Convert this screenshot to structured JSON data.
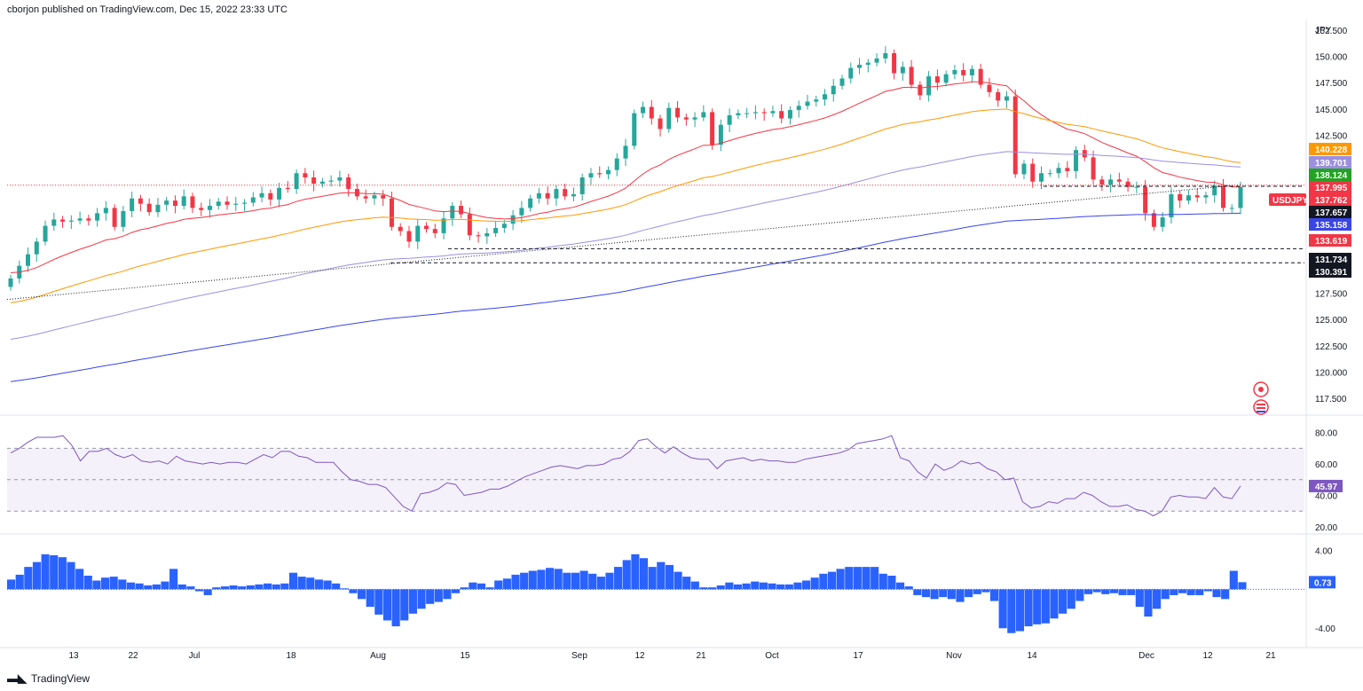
{
  "header": {
    "published_text": "cborjon published on TradingView.com, Dec 15, 2022 23:33 UTC"
  },
  "footer": {
    "brand": "TradingView"
  },
  "colors": {
    "up": "#26a69a",
    "down": "#f23645",
    "ema20": "#f23645",
    "ema50": "#ff9800",
    "ema100": "#9c8fe0",
    "ema200": "#3a45e8",
    "rsi": "#7e57c2",
    "hist": "#2962ff",
    "price_line": "#f23645"
  },
  "chart_data": [
    {
      "type": "candlestick",
      "symbol": "USDJPY",
      "currency_label": "JPY",
      "ylim": [
        116,
        153.5
      ],
      "y_ticks": [
        "152.500",
        "150.000",
        "147.500",
        "145.000",
        "142.500",
        "140.000",
        "137.500",
        "135.000",
        "132.500",
        "130.000",
        "127.500",
        "125.000",
        "122.500",
        "120.000",
        "117.500"
      ],
      "x_tick_labels": [
        "13",
        "22",
        "Jul",
        "18",
        "Aug",
        "15",
        "Sep",
        "12",
        "21",
        "Oct",
        "17",
        "Nov",
        "14",
        "Dec",
        "12",
        "21"
      ],
      "ohlc_close": [
        128.9,
        130.1,
        131.2,
        132.4,
        133.9,
        134.5,
        134.3,
        134.4,
        134.6,
        134.4,
        135.1,
        135.6,
        133.8,
        135.3,
        136.5,
        136.0,
        135.2,
        135.9,
        136.3,
        135.8,
        136.7,
        135.6,
        135.4,
        135.8,
        136.2,
        135.9,
        136.0,
        136.1,
        136.6,
        137.0,
        136.4,
        137.5,
        137.4,
        138.9,
        138.5,
        137.9,
        138.1,
        138.2,
        138.5,
        137.4,
        136.7,
        136.5,
        136.8,
        136.5,
        133.8,
        133.4,
        132.4,
        133.9,
        133.6,
        133.2,
        134.6,
        135.8,
        135.0,
        133.0,
        132.9,
        133.2,
        133.7,
        134.1,
        134.9,
        135.6,
        136.5,
        137.0,
        136.5,
        137.4,
        136.7,
        136.9,
        138.5,
        138.9,
        138.8,
        139.2,
        140.3,
        141.5,
        144.6,
        145.2,
        144.1,
        143.1,
        145.1,
        144.2,
        144.0,
        144.2,
        144.7,
        141.6,
        143.5,
        144.4,
        144.6,
        144.6,
        144.7,
        144.6,
        144.8,
        144.1,
        144.9,
        145.3,
        145.7,
        145.9,
        146.4,
        147.2,
        147.9,
        148.9,
        149.2,
        149.4,
        149.8,
        150.3,
        148.4,
        149.0,
        147.3,
        146.3,
        148.1,
        147.5,
        148.3,
        148.7,
        148.2,
        148.8,
        147.3,
        146.6,
        145.8,
        146.2,
        138.8,
        139.8,
        138.1,
        138.9,
        138.9,
        139.4,
        139.1,
        141.1,
        140.4,
        138.3,
        137.8,
        138.3,
        138.1,
        137.6,
        137.6,
        135.1,
        133.8,
        134.7,
        136.9,
        136.3,
        136.8,
        136.6,
        136.8,
        137.7,
        135.6,
        135.6,
        137.6
      ],
      "series": [
        {
          "name": "EMA20",
          "legend_value": "137.995"
        },
        {
          "name": "EMA50",
          "legend_value": "140.228"
        },
        {
          "name": "EMA100",
          "legend_value": "139.701"
        },
        {
          "name": "EMA200",
          "legend_value": "135.158"
        }
      ],
      "price_labels": [
        {
          "value": "140.228",
          "color": "#ff9800"
        },
        {
          "value": "139.701",
          "color": "#9c8fe0"
        },
        {
          "value": "138.124",
          "color": "#22a323"
        },
        {
          "value": "137.995",
          "color": "#f23645"
        },
        {
          "value": "137.762",
          "color": "#f23645"
        },
        {
          "value": "137.657",
          "color": "#131722"
        },
        {
          "value": "135.158",
          "color": "#3a45e8"
        },
        {
          "value": "133.619",
          "color": "#f23645"
        },
        {
          "value": "131.734",
          "color": "#131722"
        },
        {
          "value": "130.391",
          "color": "#131722"
        }
      ],
      "symbol_tag": "USDJPY",
      "support_levels": [
        137.66,
        131.73,
        130.39
      ]
    },
    {
      "type": "line",
      "name": "RSI",
      "ylim": [
        16,
        90
      ],
      "y_ticks": [
        "80.00",
        "60.00",
        "40.00",
        "20.00"
      ],
      "bands": [
        30,
        50,
        70
      ],
      "last_value": "45.97",
      "values": [
        67,
        70,
        74,
        77,
        77,
        77,
        78,
        72,
        62,
        68,
        68,
        70,
        66,
        64,
        66,
        62,
        61,
        62,
        60,
        65,
        62,
        61,
        60,
        61,
        60,
        61,
        61,
        60,
        63,
        66,
        64,
        68,
        68,
        65,
        64,
        61,
        61,
        61,
        55,
        50,
        49,
        47,
        47,
        45,
        39,
        33,
        30,
        41,
        42,
        44,
        48,
        47,
        40,
        41,
        42,
        44,
        44,
        46,
        49,
        52,
        54,
        56,
        58,
        59,
        58,
        57,
        59,
        59,
        60,
        63,
        64,
        68,
        75,
        76,
        71,
        67,
        71,
        67,
        64,
        63,
        63,
        57,
        62,
        63,
        64,
        62,
        63,
        62,
        62,
        61,
        61,
        63,
        64,
        65,
        66,
        67,
        69,
        73,
        74,
        75,
        76,
        78,
        64,
        62,
        55,
        51,
        60,
        56,
        58,
        62,
        60,
        61,
        57,
        55,
        50,
        51,
        36,
        32,
        33,
        36,
        35,
        38,
        38,
        42,
        40,
        36,
        33,
        33,
        34,
        31,
        30,
        27,
        30,
        39,
        40,
        39,
        39,
        38,
        45,
        39,
        38,
        45.97
      ]
    },
    {
      "type": "bar",
      "name": "MACD histogram",
      "ylim": [
        -5.8,
        5.5
      ],
      "y_ticks": [
        "4.00",
        "-4.00"
      ],
      "last_value": "0.73",
      "values": [
        1.0,
        1.5,
        2.3,
        2.8,
        3.6,
        3.5,
        3.3,
        2.8,
        2.1,
        1.4,
        0.9,
        1.2,
        1.3,
        1.0,
        0.7,
        0.6,
        0.4,
        0.5,
        0.8,
        2.1,
        0.5,
        0.3,
        -0.2,
        -0.6,
        0.2,
        0.3,
        0.4,
        0.3,
        0.4,
        0.5,
        0.6,
        0.5,
        0.6,
        1.7,
        1.3,
        1.2,
        1.0,
        0.9,
        0.6,
        0.1,
        -0.4,
        -1.0,
        -1.8,
        -2.6,
        -3.2,
        -3.8,
        -3.2,
        -2.5,
        -2.0,
        -1.5,
        -1.3,
        -1.0,
        -0.4,
        0.2,
        0.7,
        0.6,
        0.2,
        0.9,
        1.1,
        1.5,
        1.7,
        1.9,
        2.0,
        2.2,
        2.1,
        1.7,
        1.7,
        1.9,
        1.6,
        1.3,
        1.7,
        2.3,
        3.0,
        3.6,
        3.2,
        2.3,
        2.8,
        2.5,
        1.8,
        1.3,
        0.8,
        0.2,
        0.2,
        0.4,
        0.7,
        0.5,
        0.6,
        0.8,
        0.7,
        0.6,
        0.5,
        0.5,
        0.7,
        0.9,
        1.2,
        1.6,
        1.8,
        2.1,
        2.3,
        2.3,
        2.3,
        2.3,
        1.6,
        1.4,
        0.7,
        0.3,
        -0.6,
        -0.8,
        -1.0,
        -0.8,
        -1.0,
        -1.3,
        -0.8,
        -0.5,
        -0.3,
        -1.2,
        -4.0,
        -4.5,
        -4.3,
        -3.8,
        -3.6,
        -3.5,
        -3.0,
        -2.5,
        -2.0,
        -1.2,
        -0.5,
        -0.3,
        -0.5,
        -0.4,
        -0.6,
        -0.6,
        -1.8,
        -2.8,
        -2.0,
        -1.0,
        -0.6,
        -0.4,
        -0.6,
        -0.6,
        -0.2,
        -0.8,
        -1.0,
        1.9,
        0.73
      ]
    }
  ]
}
